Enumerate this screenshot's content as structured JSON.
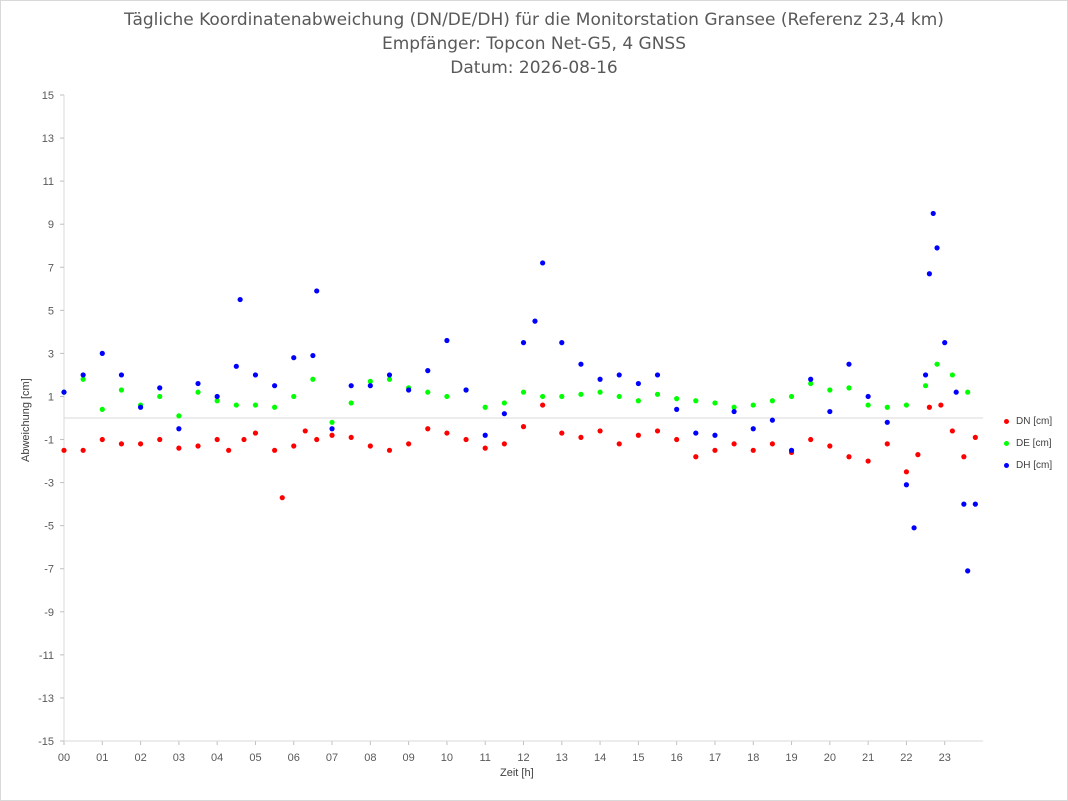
{
  "chart_data": {
    "type": "scatter",
    "title": "Tägliche Koordinatenabweichung (DN/DE/DH) für die Monitorstation Gransee (Referenz 23,4 km)",
    "subtitle1": "Empfänger: Topcon Net-G5, 4 GNSS",
    "subtitle2": "Datum: 2026-08-16",
    "xlabel": "Zeit [h]",
    "ylabel": "Abweichung [cm]",
    "xlim": [
      0,
      24
    ],
    "ylim": [
      -15,
      15
    ],
    "y_ticks": [
      "15",
      "13",
      "11",
      "9",
      "7",
      "5",
      "3",
      "1",
      "-1",
      "-3",
      "-5",
      "-7",
      "-9",
      "-11",
      "-13",
      "-15"
    ],
    "x_ticks": [
      "00",
      "01",
      "02",
      "03",
      "04",
      "05",
      "06",
      "07",
      "08",
      "09",
      "10",
      "11",
      "12",
      "13",
      "14",
      "15",
      "16",
      "17",
      "18",
      "19",
      "20",
      "21",
      "22",
      "23"
    ],
    "legend_position": "right",
    "grid": false,
    "series": [
      {
        "name": "DN [cm]",
        "color": "#ff0000",
        "x": [
          0.0,
          0.5,
          1.0,
          1.5,
          2.0,
          2.5,
          3.0,
          3.5,
          4.0,
          4.3,
          4.7,
          5.0,
          5.5,
          5.7,
          6.0,
          6.3,
          6.6,
          7.0,
          7.5,
          8.0,
          8.5,
          9.0,
          9.5,
          10.0,
          10.5,
          11.0,
          11.5,
          12.0,
          12.5,
          13.0,
          13.5,
          14.0,
          14.5,
          15.0,
          15.5,
          16.0,
          16.5,
          17.0,
          17.5,
          18.0,
          18.5,
          19.0,
          19.5,
          20.0,
          20.5,
          21.0,
          21.5,
          22.0,
          22.3,
          22.6,
          22.9,
          23.2,
          23.5,
          23.8
        ],
        "y": [
          -1.5,
          -1.5,
          -1.0,
          -1.2,
          -1.2,
          -1.0,
          -1.4,
          -1.3,
          -1.0,
          -1.5,
          -1.0,
          -0.7,
          -1.5,
          -3.7,
          -1.3,
          -0.6,
          -1.0,
          -0.8,
          -0.9,
          -1.3,
          -1.5,
          -1.2,
          -0.5,
          -0.7,
          -1.0,
          -1.4,
          -1.2,
          -0.4,
          0.6,
          -0.7,
          -0.9,
          -0.6,
          -1.2,
          -0.8,
          -0.6,
          -1.0,
          -1.8,
          -1.5,
          -1.2,
          -1.5,
          -1.2,
          -1.6,
          -1.0,
          -1.3,
          -1.8,
          -2.0,
          -1.2,
          -2.5,
          -1.7,
          0.5,
          0.6,
          -0.6,
          -1.8,
          -0.9
        ]
      },
      {
        "name": "DE [cm]",
        "color": "#00ff00",
        "x": [
          0.0,
          0.5,
          1.0,
          1.5,
          2.0,
          2.5,
          3.0,
          3.5,
          4.0,
          4.5,
          5.0,
          5.5,
          6.0,
          6.5,
          7.0,
          7.5,
          8.0,
          8.5,
          9.0,
          9.5,
          10.0,
          10.5,
          11.0,
          11.5,
          12.0,
          12.5,
          13.0,
          13.5,
          14.0,
          14.5,
          15.0,
          15.5,
          16.0,
          16.5,
          17.0,
          17.5,
          18.0,
          18.5,
          19.0,
          19.5,
          20.0,
          20.5,
          21.0,
          21.5,
          22.0,
          22.5,
          22.8,
          23.2,
          23.6
        ],
        "y": [
          1.2,
          1.8,
          0.4,
          1.3,
          0.6,
          1.0,
          0.1,
          1.2,
          0.8,
          0.6,
          0.6,
          0.5,
          1.0,
          1.8,
          -0.2,
          0.7,
          1.7,
          1.8,
          1.4,
          1.2,
          1.0,
          1.3,
          0.5,
          0.7,
          1.2,
          1.0,
          1.0,
          1.1,
          1.2,
          1.0,
          0.8,
          1.1,
          0.9,
          0.8,
          0.7,
          0.5,
          0.6,
          0.8,
          1.0,
          1.6,
          1.3,
          1.4,
          0.6,
          0.5,
          0.6,
          1.5,
          2.5,
          2.0,
          1.2
        ]
      },
      {
        "name": "DH [cm]",
        "color": "#0000ff",
        "x": [
          0.0,
          0.5,
          1.0,
          1.5,
          2.0,
          2.5,
          3.0,
          3.5,
          4.0,
          4.5,
          4.6,
          5.0,
          5.5,
          6.0,
          6.5,
          6.6,
          7.0,
          7.5,
          8.0,
          8.5,
          9.0,
          9.5,
          10.0,
          10.5,
          11.0,
          11.5,
          12.0,
          12.3,
          12.5,
          13.0,
          13.5,
          14.0,
          14.5,
          15.0,
          15.5,
          16.0,
          16.5,
          17.0,
          17.5,
          18.0,
          18.5,
          19.0,
          19.5,
          20.0,
          20.5,
          21.0,
          21.5,
          22.0,
          22.2,
          22.5,
          22.6,
          22.7,
          22.8,
          23.0,
          23.3,
          23.5,
          23.6,
          23.8
        ],
        "y": [
          1.2,
          2.0,
          3.0,
          2.0,
          0.5,
          1.4,
          -0.5,
          1.6,
          1.0,
          2.4,
          5.5,
          2.0,
          1.5,
          2.8,
          2.9,
          5.9,
          -0.5,
          1.5,
          1.5,
          2.0,
          1.3,
          2.2,
          3.6,
          1.3,
          -0.8,
          0.2,
          3.5,
          4.5,
          7.2,
          3.5,
          2.5,
          1.8,
          2.0,
          1.6,
          2.0,
          0.4,
          -0.7,
          -0.8,
          0.3,
          -0.5,
          -0.1,
          -1.5,
          1.8,
          0.3,
          2.5,
          1.0,
          -0.2,
          -3.1,
          -5.1,
          2.0,
          6.7,
          9.5,
          7.9,
          3.5,
          1.2,
          -4.0,
          -7.1,
          -4.0
        ]
      }
    ]
  }
}
